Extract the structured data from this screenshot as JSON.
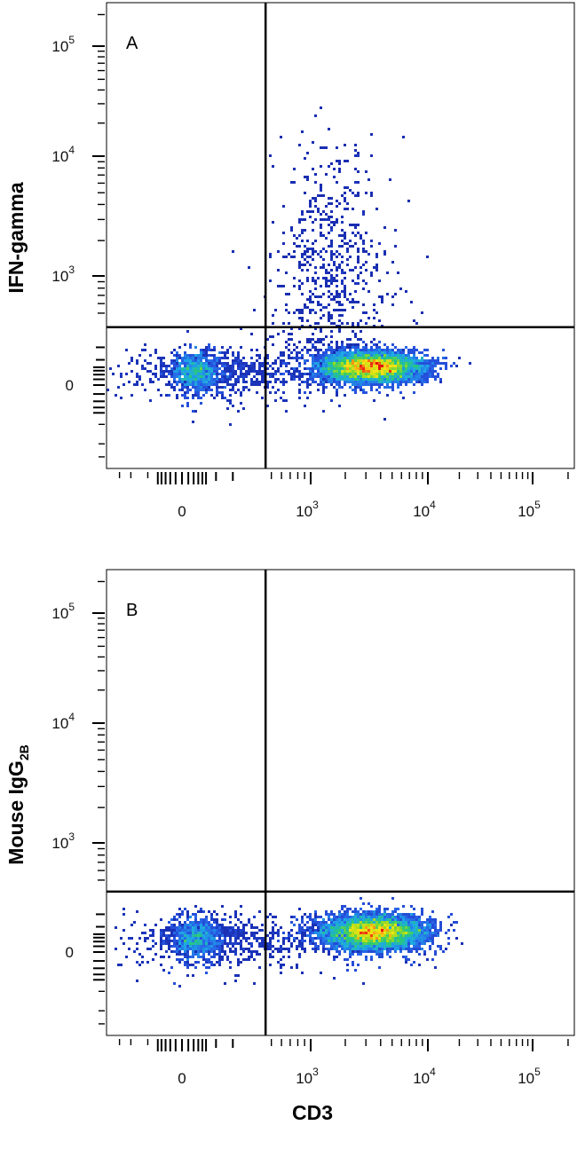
{
  "chart_data": [
    {
      "type": "scatter",
      "panel_label": "A",
      "ylabel": "IFN-gamma",
      "xlabel": "",
      "x_ticks": [
        {
          "base": "0",
          "exp": "",
          "value": 0
        },
        {
          "base": "10",
          "exp": "3",
          "value": 1000
        },
        {
          "base": "10",
          "exp": "4",
          "value": 10000
        },
        {
          "base": "10",
          "exp": "5",
          "value": 100000
        }
      ],
      "y_ticks": [
        {
          "base": "0",
          "exp": "",
          "value": 0
        },
        {
          "base": "10",
          "exp": "3",
          "value": 1000
        },
        {
          "base": "10",
          "exp": "4",
          "value": 10000
        },
        {
          "base": "10",
          "exp": "5",
          "value": 100000
        }
      ],
      "gate": {
        "x": 450,
        "y": 380
      },
      "populations": [
        {
          "cx": 30,
          "cy": 40,
          "sx": 0.09,
          "sy": 0.1,
          "n": 700,
          "peak": 1.0
        },
        {
          "cx": 3300,
          "cy": 60,
          "sx": 0.13,
          "sy": 0.08,
          "n": 4500,
          "peak": 1.0
        },
        {
          "cx": 1500,
          "cy": 1100,
          "sx": 0.15,
          "sy": 0.28,
          "n": 700,
          "peak": 0.12
        },
        {
          "cx": 200,
          "cy": 40,
          "sx": 0.4,
          "sy": 0.12,
          "n": 900,
          "peak": 0.2
        }
      ]
    },
    {
      "type": "scatter",
      "panel_label": "B",
      "ylabel": "Mouse IgG",
      "ylabel_sub": "2B",
      "xlabel": "CD3",
      "x_ticks": [
        {
          "base": "0",
          "exp": "",
          "value": 0
        },
        {
          "base": "10",
          "exp": "3",
          "value": 1000
        },
        {
          "base": "10",
          "exp": "4",
          "value": 10000
        },
        {
          "base": "10",
          "exp": "5",
          "value": 100000
        }
      ],
      "y_ticks": [
        {
          "base": "0",
          "exp": "",
          "value": 0
        },
        {
          "base": "10",
          "exp": "3",
          "value": 1000
        },
        {
          "base": "10",
          "exp": "4",
          "value": 10000
        },
        {
          "base": "10",
          "exp": "5",
          "value": 100000
        }
      ],
      "gate": {
        "x": 450,
        "y": 400
      },
      "populations": [
        {
          "cx": 30,
          "cy": 40,
          "sx": 0.09,
          "sy": 0.1,
          "n": 700,
          "peak": 1.0
        },
        {
          "cx": 3500,
          "cy": 70,
          "sx": 0.13,
          "sy": 0.09,
          "n": 5000,
          "peak": 1.0
        },
        {
          "cx": 200,
          "cy": 40,
          "sx": 0.4,
          "sy": 0.12,
          "n": 900,
          "peak": 0.2
        }
      ]
    }
  ]
}
